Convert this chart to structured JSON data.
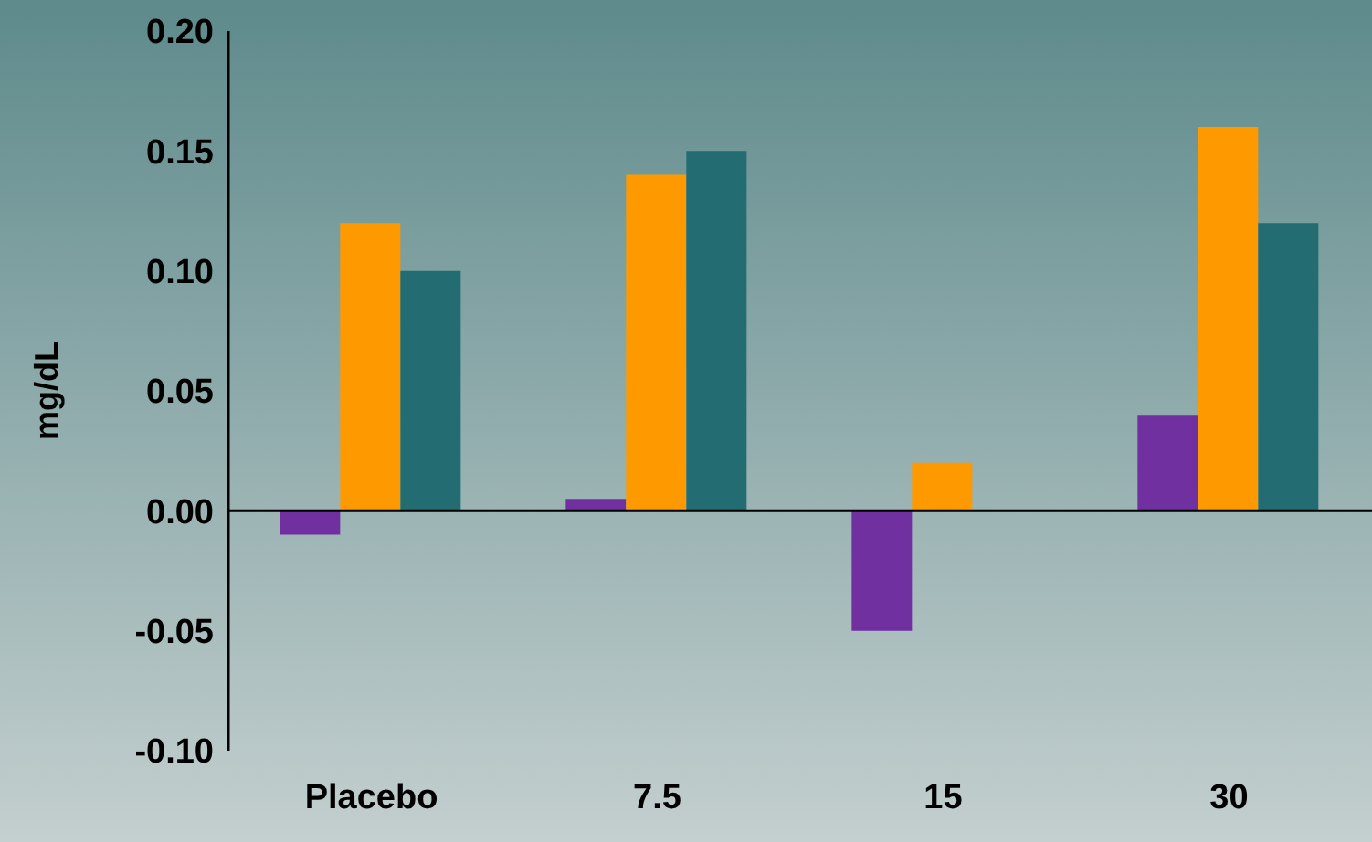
{
  "chart_data": {
    "type": "bar",
    "ylabel": "mg/dL",
    "categories": [
      "Placebo",
      "7.5",
      "15",
      "30"
    ],
    "series": [
      {
        "color": "#7030a0",
        "values": [
          -0.01,
          0.005,
          -0.05,
          0.04
        ]
      },
      {
        "color": "#ff9900",
        "values": [
          0.12,
          0.14,
          0.02,
          0.16
        ]
      },
      {
        "color": "#236d72",
        "values": [
          0.1,
          0.15,
          null,
          0.12
        ]
      }
    ],
    "ylim": [
      -0.1,
      0.2
    ],
    "yticks": [
      {
        "value": -0.1,
        "label": "-0.10"
      },
      {
        "value": -0.05,
        "label": "-0.05"
      },
      {
        "value": 0,
        "label": "0.00"
      },
      {
        "value": 0.05,
        "label": "0.05"
      },
      {
        "value": 0.1,
        "label": "0.10"
      },
      {
        "value": 0.15,
        "label": "0.15"
      },
      {
        "value": 0.2,
        "label": "0.20"
      }
    ],
    "legend": false
  }
}
